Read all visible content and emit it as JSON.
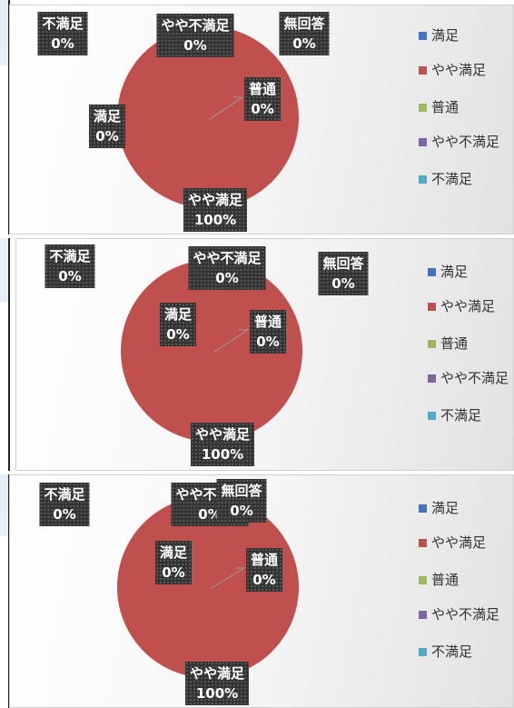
{
  "chart_data": [
    {
      "type": "pie",
      "categories": [
        "満足",
        "やや満足",
        "普通",
        "やや不満足",
        "不満足",
        "無回答"
      ],
      "values": [
        0,
        100,
        0,
        0,
        0,
        0
      ],
      "value_labels": [
        "0%",
        "100%",
        "0%",
        "0%",
        "0%",
        "0%"
      ],
      "colors": [
        "#4472c4",
        "#c0504d",
        "#9bbb59",
        "#8064a2",
        "#4bacc6",
        "#f79646"
      ],
      "legend": "right"
    },
    {
      "type": "pie",
      "categories": [
        "満足",
        "やや満足",
        "普通",
        "やや不満足",
        "不満足",
        "無回答"
      ],
      "values": [
        0,
        100,
        0,
        0,
        0,
        0
      ],
      "value_labels": [
        "0%",
        "100%",
        "0%",
        "0%",
        "0%",
        "0%"
      ],
      "colors": [
        "#4472c4",
        "#c0504d",
        "#9bbb59",
        "#8064a2",
        "#4bacc6",
        "#f79646"
      ],
      "legend": "right"
    },
    {
      "type": "pie",
      "categories": [
        "満足",
        "やや満足",
        "普通",
        "やや不満足",
        "不満足",
        "無回答"
      ],
      "values": [
        0,
        100,
        0,
        0,
        0,
        0
      ],
      "value_labels": [
        "0%",
        "100%",
        "0%",
        "0%",
        "0%",
        "0%"
      ],
      "colors": [
        "#4472c4",
        "#c0504d",
        "#9bbb59",
        "#8064a2",
        "#4bacc6",
        "#f79646"
      ],
      "legend": "right"
    }
  ]
}
